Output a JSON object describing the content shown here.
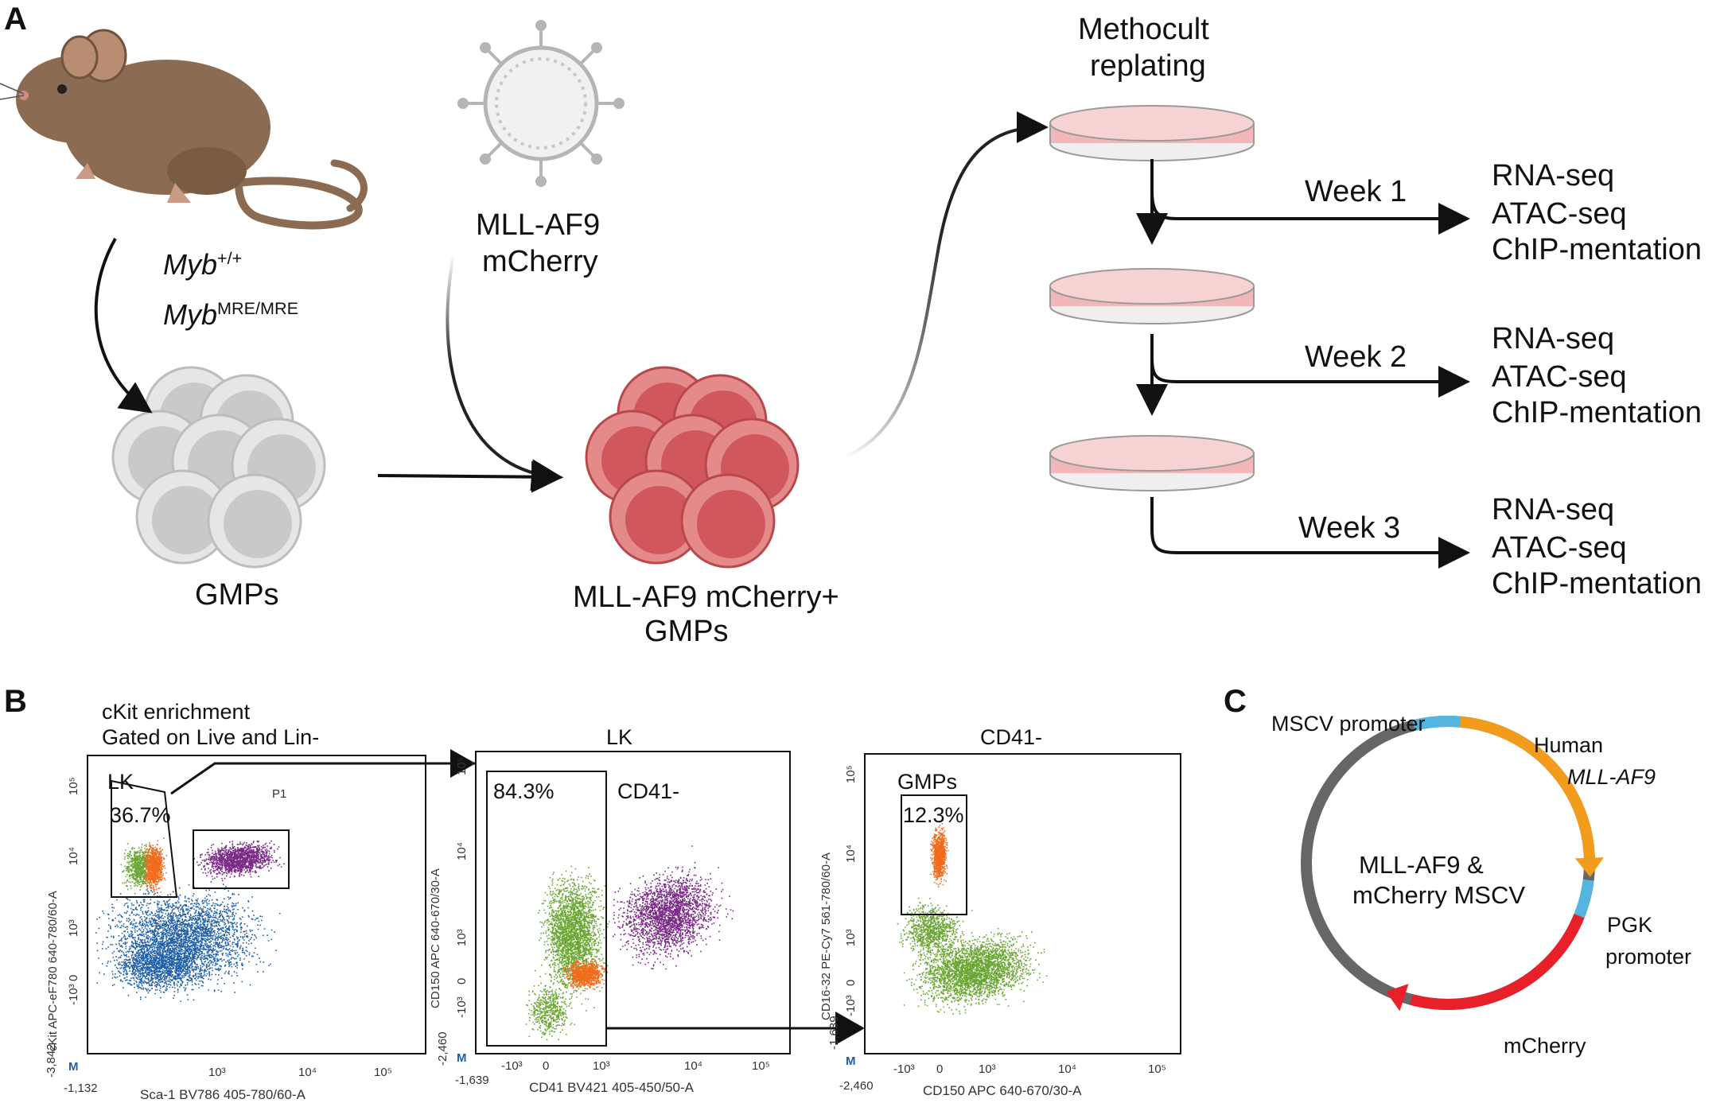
{
  "panelA": {
    "label": "A",
    "myb_wt": {
      "base": "Myb",
      "sup": "+/+"
    },
    "myb_mre": {
      "base": "Myb",
      "sup": "MRE/MRE"
    },
    "virus_label": [
      "MLL-AF9",
      "mCherry"
    ],
    "gmps_label": "GMPs",
    "transduced_label": [
      "MLL-AF9 mCherry+",
      "GMPs"
    ],
    "methocult_label": [
      "Methocult",
      "replating"
    ],
    "weeks": [
      {
        "label": "Week 1",
        "assays": [
          "RNA-seq",
          "ATAC-seq",
          "ChIP-mentation"
        ]
      },
      {
        "label": "Week 2",
        "assays": [
          "RNA-seq",
          "ATAC-seq",
          "ChIP-mentation"
        ]
      },
      {
        "label": "Week 3",
        "assays": [
          "RNA-seq",
          "ATAC-seq",
          "ChIP-mentation"
        ]
      }
    ]
  },
  "panelB": {
    "label": "B",
    "plot1": {
      "header": [
        "cKit enrichment",
        "Gated on Live and Lin-"
      ],
      "gate_lk": "LK",
      "gate_lk_pct": "36.7%",
      "gate_p1": "P1",
      "ylabel": "cKit APC-eF780 640-780/60-A",
      "xlabel": "Sca-1 BV786 405-780/60-A",
      "xmin": "-1,132",
      "ymin": "-3,842",
      "xticks": [
        "10³",
        "10⁴",
        "10⁵"
      ],
      "yticks": [
        "10⁵",
        "10⁴",
        "10³",
        "0",
        "-10³"
      ]
    },
    "plot2": {
      "title": "LK",
      "gate_pct": "84.3%",
      "gate_name": "CD41-",
      "ylabel": "CD150 APC 640-670/30-A",
      "xlabel": "CD41 BV421 405-450/50-A",
      "xmin": "-1,639",
      "ymin": "-2,460",
      "xticks": [
        "-10³",
        "0",
        "10³",
        "10⁴",
        "10⁵"
      ],
      "yticks": [
        "10⁵",
        "10⁴",
        "10³",
        "0",
        "-10³"
      ]
    },
    "plot3": {
      "title": "CD41-",
      "gate_name": "GMPs",
      "gate_pct": "12.3%",
      "ylabel": "CD16-32 PE-Cy7 561-780/60-A",
      "xlabel": "CD150 APC 640-670/30-A",
      "xmin": "-2,460",
      "ymin": "-1,639",
      "xticks": [
        "-10³",
        "0",
        "10³",
        "10⁴",
        "10⁵"
      ],
      "yticks": [
        "10⁵",
        "10⁴",
        "10³",
        "0",
        "-10³"
      ]
    },
    "corner_mark": "M"
  },
  "panelC": {
    "label": "C",
    "mscv_promoter": "MSCV promoter",
    "human": "Human",
    "mll_af9": "MLL-AF9",
    "pgk": [
      "PGK",
      "promoter"
    ],
    "mcherry": "mCherry",
    "center": [
      "MLL-AF9 &",
      "mCherry MSCV"
    ]
  },
  "colors": {
    "mouse": "#8b6b52",
    "gmp": "#d0d0d0",
    "transduced": "#d9676a",
    "dish": "#f2b7b9",
    "blue_pop": "#1f5fa8",
    "green_pop": "#6aa632",
    "orange_pop": "#f26b1d",
    "purple_pop": "#7a2a86",
    "plasmid_grey": "#666666",
    "mscv_blue": "#54b6e0",
    "mllaf9_orange": "#f39b1a",
    "mcherry_red": "#e8202a"
  }
}
